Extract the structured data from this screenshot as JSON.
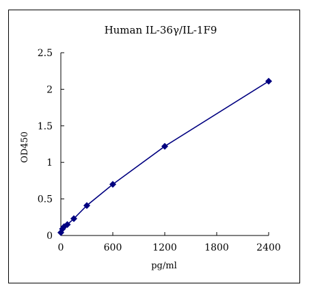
{
  "chart_data": {
    "type": "line",
    "title": "Human IL-36γ/IL-1F9",
    "xlabel": "pg/ml",
    "ylabel": "OD450",
    "xlim": [
      0,
      2400
    ],
    "ylim": [
      0,
      2.5
    ],
    "x_ticks": [
      0,
      600,
      1200,
      1800,
      2400
    ],
    "x_tick_labels": [
      "0",
      "600",
      "1200",
      "1800",
      "2400"
    ],
    "y_ticks": [
      0,
      0.5,
      1,
      1.5,
      2,
      2.5
    ],
    "y_tick_labels": [
      "0",
      "0.5",
      "1",
      "1.5",
      "2",
      "2.5"
    ],
    "grid": false,
    "series": [
      {
        "x": [
          0,
          18.75,
          37.5,
          75,
          150,
          300,
          600,
          1200,
          2400
        ],
        "values": [
          0.04,
          0.09,
          0.12,
          0.15,
          0.23,
          0.41,
          0.7,
          1.22,
          2.11
        ]
      }
    ],
    "colors": {
      "series": "#000080",
      "axis": "#000000"
    }
  }
}
